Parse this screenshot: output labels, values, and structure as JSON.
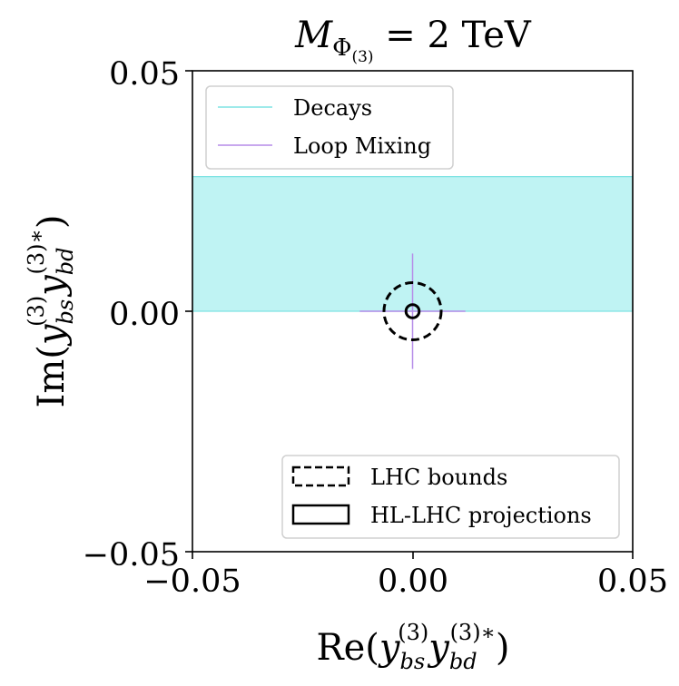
{
  "chart_data": {
    "type": "scatter",
    "title_main": "M",
    "title_sub": "Φ",
    "title_subsub": "(3)",
    "title_rest": " = 2 TeV",
    "xlabel": {
      "pre": "Re(",
      "y1": "y",
      "y1_sub": "bs",
      "y1_sup": "(3)",
      "y2": "y",
      "y2_sub": "bd",
      "y2_sup": "(3)∗",
      "post": ")"
    },
    "ylabel": {
      "pre": "Im(",
      "y1": "y",
      "y1_sub": "bs",
      "y1_sup": "(3)",
      "y2": "y",
      "y2_sub": "bd",
      "y2_sup": "(3)∗",
      "post": ")"
    },
    "xlim": [
      -0.05,
      0.05
    ],
    "ylim": [
      -0.05,
      0.05
    ],
    "xticks": [
      -0.05,
      0.0,
      0.05
    ],
    "yticks": [
      -0.05,
      0.0,
      0.05
    ],
    "xtick_labels": [
      "−0.05",
      "0.00",
      "0.05"
    ],
    "ytick_labels": [
      "−0.05",
      "0.00",
      "0.05"
    ],
    "decays_band": {
      "y_min": 0.0,
      "y_max": 0.028,
      "color": "#bff3f3",
      "edge": "#7fe3e3"
    },
    "loop_mixing": {
      "center": [
        0.0,
        0.0
      ],
      "x_range": [
        -0.012,
        0.012
      ],
      "y_range": [
        -0.012,
        0.012
      ],
      "color": "#b68ce8"
    },
    "lhc_bounds": {
      "center": [
        0.0,
        0.0
      ],
      "radius": 0.0065
    },
    "hl_lhc_projections": {
      "center": [
        0.0,
        0.0
      ],
      "radius": 0.0015
    },
    "legend_top": {
      "placement": "top-left",
      "entries": [
        {
          "label": "Decays",
          "color": "#7fe3e3"
        },
        {
          "label": "Loop Mixing",
          "color": "#b68ce8"
        }
      ]
    },
    "legend_bottom": {
      "placement": "bottom-right",
      "entries": [
        {
          "label": "LHC bounds",
          "style": "dashed"
        },
        {
          "label": "HL-LHC projections",
          "style": "solid"
        }
      ]
    }
  }
}
